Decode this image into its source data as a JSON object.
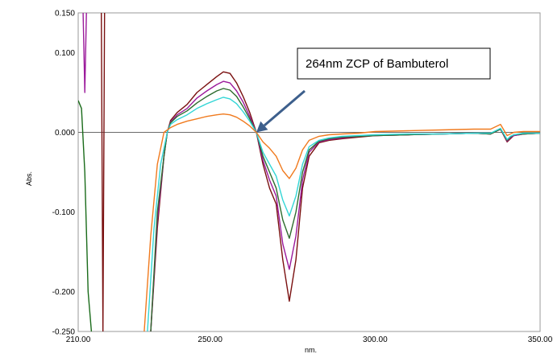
{
  "chart_data": {
    "type": "line",
    "title": "",
    "xlabel": "nm.",
    "ylabel": "Abs.",
    "xlim": [
      210,
      350
    ],
    "ylim": [
      -0.25,
      0.15
    ],
    "x_ticks": [
      210,
      250,
      300,
      350
    ],
    "x_tick_labels": [
      "210.00",
      "250.00",
      "300.00",
      "350.00"
    ],
    "y_ticks": [
      0.15,
      0.1,
      0.0,
      -0.1,
      -0.2,
      -0.25
    ],
    "y_tick_labels": [
      "0.150",
      "0.100",
      "0.000",
      "-0.100",
      "-0.200",
      "-0.250"
    ],
    "grid": false,
    "zero_line": 0.0,
    "annotation": {
      "text": "264nm ZCP of Bambuterol",
      "arrow_to": [
        264,
        0.0
      ]
    },
    "series": [
      {
        "color": "#7a1010",
        "x": [
          232,
          234,
          236,
          237,
          238,
          240,
          243,
          246,
          249,
          252,
          254,
          256,
          258,
          260,
          262,
          264,
          266,
          268,
          270,
          272,
          274,
          276,
          278,
          280,
          283,
          286,
          290,
          295,
          300,
          310,
          320,
          330,
          335,
          338,
          340,
          341,
          342,
          345,
          350
        ],
        "y": [
          -0.25,
          -0.12,
          -0.03,
          0.0,
          0.015,
          0.025,
          0.035,
          0.05,
          0.06,
          0.07,
          0.076,
          0.074,
          0.062,
          0.045,
          0.025,
          0.0,
          -0.04,
          -0.07,
          -0.09,
          -0.16,
          -0.212,
          -0.16,
          -0.07,
          -0.03,
          -0.013,
          -0.01,
          -0.008,
          -0.006,
          -0.004,
          -0.003,
          -0.002,
          -0.001,
          -0.002,
          0.004,
          -0.012,
          -0.008,
          -0.004,
          -0.002,
          -0.001
        ]
      },
      {
        "color": "#9b1a9b",
        "x": [
          232,
          234,
          236,
          237,
          238,
          240,
          243,
          246,
          249,
          252,
          254,
          256,
          258,
          260,
          262,
          264,
          266,
          268,
          270,
          272,
          274,
          276,
          278,
          280,
          283,
          286,
          290,
          295,
          300,
          310,
          320,
          330,
          335,
          338,
          340,
          341,
          342,
          345,
          350
        ],
        "y": [
          -0.25,
          -0.11,
          -0.03,
          0.0,
          0.013,
          0.022,
          0.03,
          0.043,
          0.052,
          0.06,
          0.064,
          0.062,
          0.052,
          0.038,
          0.02,
          0.0,
          -0.035,
          -0.06,
          -0.08,
          -0.14,
          -0.172,
          -0.13,
          -0.06,
          -0.025,
          -0.012,
          -0.009,
          -0.007,
          -0.005,
          -0.004,
          -0.003,
          -0.002,
          -0.001,
          -0.002,
          0.004,
          -0.011,
          -0.007,
          -0.004,
          -0.002,
          -0.001
        ]
      },
      {
        "color": "#2e6b2e",
        "x": [
          232,
          234,
          236,
          237,
          238,
          240,
          243,
          246,
          249,
          252,
          254,
          256,
          258,
          260,
          262,
          264,
          266,
          268,
          270,
          272,
          274,
          276,
          278,
          280,
          283,
          286,
          290,
          295,
          300,
          310,
          320,
          330,
          335,
          338,
          340,
          341,
          342,
          345,
          350
        ],
        "y": [
          -0.25,
          -0.1,
          -0.03,
          0.0,
          0.012,
          0.02,
          0.027,
          0.037,
          0.045,
          0.052,
          0.055,
          0.053,
          0.045,
          0.032,
          0.017,
          0.0,
          -0.03,
          -0.05,
          -0.07,
          -0.11,
          -0.133,
          -0.1,
          -0.05,
          -0.022,
          -0.011,
          -0.008,
          -0.006,
          -0.005,
          -0.004,
          -0.003,
          -0.002,
          -0.001,
          -0.002,
          0.004,
          -0.01,
          -0.006,
          -0.003,
          -0.002,
          -0.001
        ]
      },
      {
        "color": "#33d6d6",
        "x": [
          231,
          233,
          235,
          237,
          238,
          240,
          243,
          246,
          249,
          252,
          254,
          256,
          258,
          260,
          262,
          264,
          266,
          268,
          270,
          272,
          274,
          276,
          278,
          280,
          283,
          286,
          290,
          295,
          300,
          310,
          320,
          330,
          335,
          338,
          340,
          341,
          342,
          345,
          350
        ],
        "y": [
          -0.25,
          -0.12,
          -0.04,
          0.0,
          0.01,
          0.016,
          0.022,
          0.03,
          0.036,
          0.041,
          0.044,
          0.042,
          0.036,
          0.026,
          0.014,
          0.0,
          -0.025,
          -0.04,
          -0.055,
          -0.085,
          -0.105,
          -0.08,
          -0.04,
          -0.018,
          -0.01,
          -0.007,
          -0.005,
          -0.004,
          -0.003,
          -0.002,
          -0.002,
          -0.001,
          -0.001,
          0.005,
          -0.009,
          -0.005,
          -0.003,
          -0.001,
          -0.001
        ]
      },
      {
        "color": "#f07a1e",
        "x": [
          230,
          232,
          234,
          236,
          238,
          240,
          243,
          246,
          249,
          252,
          254,
          256,
          258,
          260,
          262,
          264,
          266,
          268,
          270,
          272,
          274,
          276,
          278,
          280,
          283,
          286,
          290,
          295,
          300,
          310,
          320,
          330,
          335,
          338,
          340,
          341,
          342,
          345,
          350
        ],
        "y": [
          -0.25,
          -0.13,
          -0.04,
          0.0,
          0.006,
          0.01,
          0.014,
          0.017,
          0.02,
          0.022,
          0.023,
          0.022,
          0.019,
          0.014,
          0.008,
          0.0,
          -0.012,
          -0.02,
          -0.03,
          -0.048,
          -0.058,
          -0.045,
          -0.022,
          -0.01,
          -0.005,
          -0.003,
          -0.002,
          -0.001,
          0.001,
          0.002,
          0.003,
          0.004,
          0.004,
          0.01,
          -0.004,
          -0.002,
          0.0,
          0.001,
          0.001
        ]
      },
      {
        "color": "#1a6b1a",
        "x": [
          210,
          211,
          212,
          213,
          214
        ],
        "y": [
          0.04,
          0.03,
          -0.05,
          -0.2,
          -0.25
        ]
      },
      {
        "color": "#9b1a9b",
        "x": [
          211.5,
          212,
          212.5
        ],
        "y": [
          0.15,
          0.05,
          0.15
        ]
      },
      {
        "color": "#7a1010",
        "x": [
          217,
          217.5,
          218
        ],
        "y": [
          0.15,
          -0.25,
          0.15
        ]
      }
    ]
  }
}
